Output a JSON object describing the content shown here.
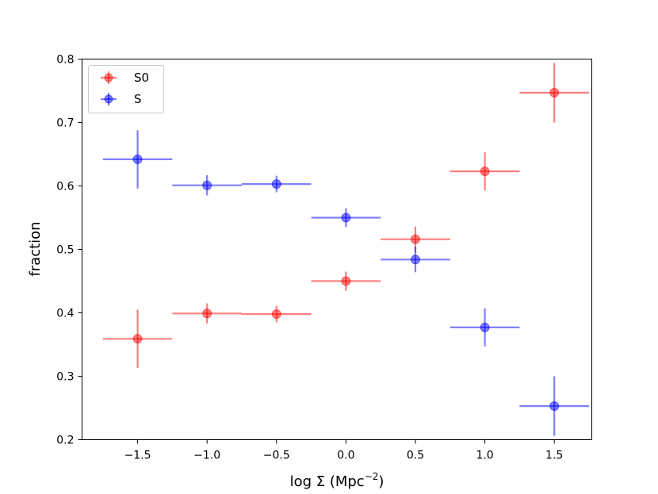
{
  "chart_data": {
    "type": "scatter",
    "title": "",
    "xlabel": "log Σ (Mpc",
    "xlabel_superscript": "−2",
    "xlabel_close": ")",
    "ylabel": "fraction",
    "xlim": [
      -1.9,
      1.77
    ],
    "ylim": [
      0.2,
      0.8
    ],
    "xticks": [
      -1.5,
      -1.0,
      -0.5,
      0.0,
      0.5,
      1.0,
      1.5
    ],
    "xtick_labels": [
      "−1.5",
      "−1.0",
      "−0.5",
      "0.0",
      "0.5",
      "1.0",
      "1.5"
    ],
    "yticks": [
      0.2,
      0.3,
      0.4,
      0.5,
      0.6,
      0.7,
      0.8
    ],
    "ytick_labels": [
      "0.2",
      "0.3",
      "0.4",
      "0.5",
      "0.6",
      "0.7",
      "0.8"
    ],
    "legend_position": "top-left",
    "series": [
      {
        "name": "S0",
        "color": "#ff0000",
        "x": [
          -1.5,
          -1.0,
          -0.5,
          0.0,
          0.5,
          1.0,
          1.5
        ],
        "y": [
          0.359,
          0.399,
          0.398,
          0.45,
          0.516,
          0.623,
          0.747
        ],
        "xerr": [
          0.25,
          0.25,
          0.25,
          0.25,
          0.25,
          0.25,
          0.25
        ],
        "yerr": [
          0.046,
          0.016,
          0.013,
          0.015,
          0.02,
          0.03,
          0.047
        ]
      },
      {
        "name": "S",
        "color": "#0000ff",
        "x": [
          -1.5,
          -1.0,
          -0.5,
          0.0,
          0.5,
          1.0,
          1.5
        ],
        "y": [
          0.642,
          0.601,
          0.603,
          0.55,
          0.484,
          0.377,
          0.253
        ],
        "xerr": [
          0.25,
          0.25,
          0.25,
          0.25,
          0.25,
          0.25,
          0.25
        ],
        "yerr": [
          0.046,
          0.016,
          0.013,
          0.015,
          0.02,
          0.03,
          0.047
        ]
      }
    ]
  }
}
